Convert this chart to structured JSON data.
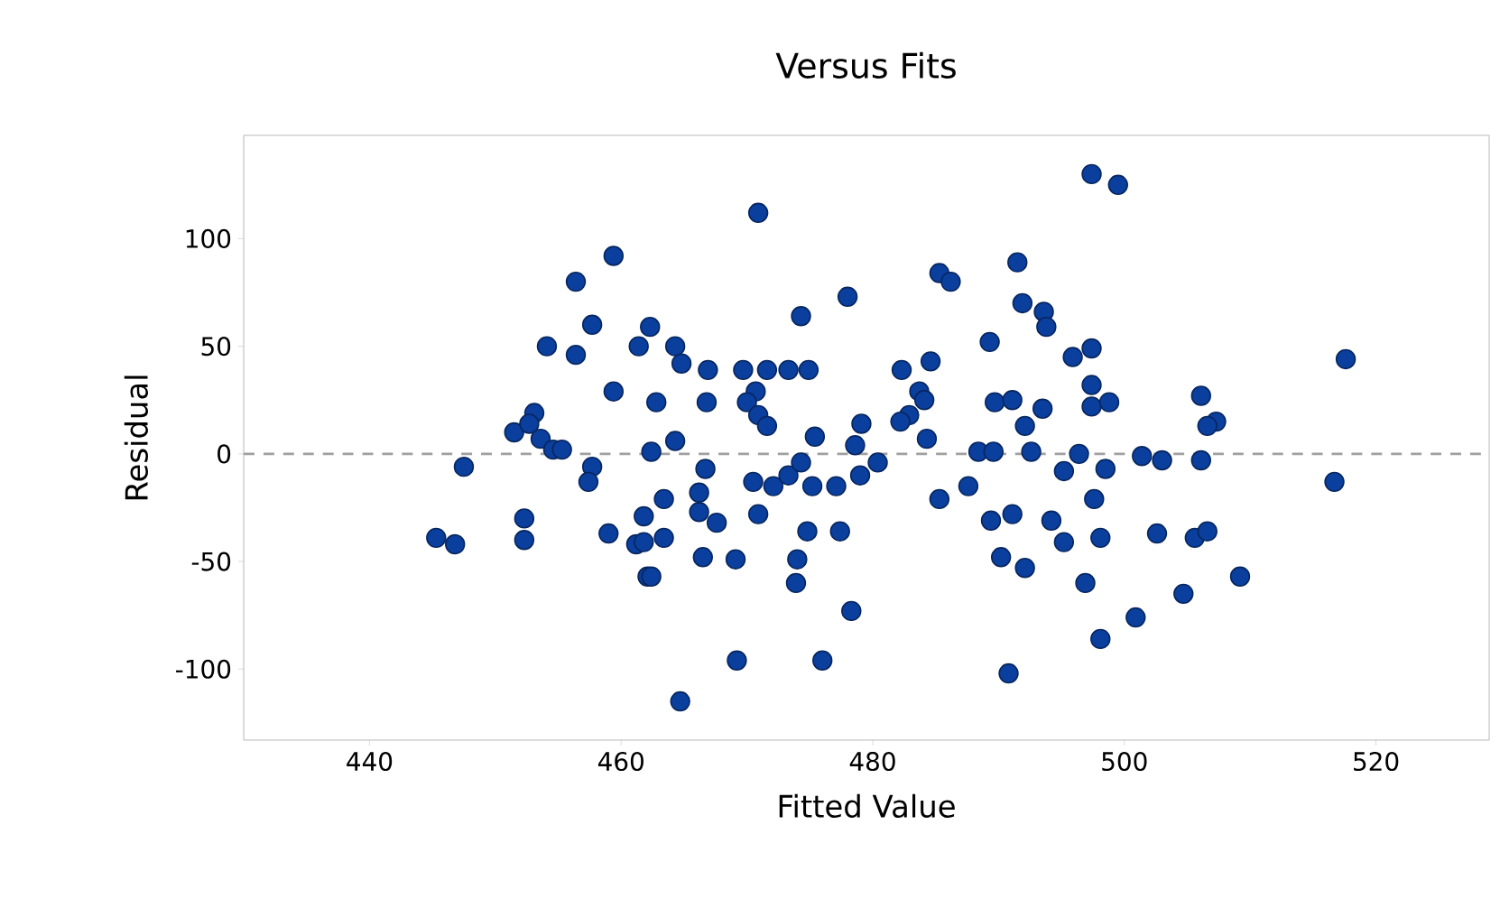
{
  "chart_data": {
    "type": "scatter",
    "title": "Versus Fits",
    "xlabel": "Fitted Value",
    "ylabel": "Residual",
    "xlim": [
      430,
      529
    ],
    "ylim": [
      -133,
      148
    ],
    "xticks": [
      440,
      460,
      480,
      500,
      520
    ],
    "yticks": [
      -100,
      -50,
      0,
      50,
      100
    ],
    "marker": "circle",
    "grid": false,
    "ref_lines": [
      {
        "axis": "y",
        "value": 0,
        "color": "#a0a0a0",
        "line_style": "dashed"
      }
    ],
    "series": [
      {
        "color": "#0b3f9e",
        "x": [
          459.4,
          456.4,
          457.7,
          454.1,
          456.4,
          459.4,
          453.1,
          451.5,
          452.7,
          453.6,
          454.6,
          455.3,
          447.5,
          457.7,
          457.4,
          459,
          461.2,
          462.1,
          452.3,
          452.3,
          445.3,
          446.8,
          470.9,
          485.3,
          486.2,
          491.5,
          478,
          474.3,
          491.9,
          493.6,
          493.8,
          462.3,
          461.4,
          464.3,
          489.3,
          495.9,
          464.8,
          466.9,
          469.7,
          471.6,
          473.3,
          474.9,
          482.3,
          484.6,
          483.7,
          470.7,
          462.8,
          466.8,
          470,
          470.9,
          471.6,
          484.1,
          482.9,
          482.2,
          489.7,
          491.1,
          493.5,
          492.1,
          492.6,
          484.3,
          479.1,
          478.6,
          475.4,
          462.4,
          464.3,
          488.4,
          489.6,
          466.7,
          470.5,
          472.1,
          473.3,
          474.3,
          475.2,
          477.1,
          479,
          480.4,
          466.2,
          466.2,
          463.4,
          485.3,
          487.6,
          461.8,
          461.8,
          463.4,
          467.6,
          470.9,
          474.8,
          477.4,
          489.4,
          491.1,
          494.2,
          495.2,
          466.5,
          469.1,
          474,
          490.2,
          492.1,
          462.4,
          473.9,
          478.3,
          469.2,
          476,
          490.8,
          464.7,
          497.4,
          499.5,
          497.4,
          497.4,
          497.4,
          498.8,
          506.1,
          507.3,
          506.6,
          496.4,
          495.2,
          498.5,
          501.4,
          503,
          506.1,
          516.7,
          497.6,
          498.1,
          502.6,
          505.6,
          506.6,
          509.2,
          496.9,
          504.7,
          500.9,
          498.1,
          517.6
        ],
        "values": [
          92,
          80,
          60,
          50,
          46,
          29,
          19,
          10,
          14,
          7,
          2,
          2,
          -6,
          -6,
          -13,
          -37,
          -42,
          -57,
          -30,
          -40,
          -39,
          -42,
          112,
          84,
          80,
          89,
          73,
          64,
          70,
          66,
          59,
          59,
          50,
          50,
          52,
          45,
          42,
          39,
          39,
          39,
          39,
          39,
          39,
          43,
          29,
          29,
          24,
          24,
          24,
          18,
          13,
          25,
          18,
          15,
          24,
          25,
          21,
          13,
          1,
          7,
          14,
          4,
          8,
          1,
          6,
          1,
          1,
          -7,
          -13,
          -15,
          -10,
          -4,
          -15,
          -15,
          -10,
          -4,
          -18,
          -27,
          -21,
          -21,
          -15,
          -29,
          -41,
          -39,
          -32,
          -28,
          -36,
          -36,
          -31,
          -28,
          -31,
          -41,
          -48,
          -49,
          -49,
          -48,
          -53,
          -57,
          -60,
          -73,
          -96,
          -96,
          -102,
          -115,
          130,
          125,
          49,
          32,
          22,
          24,
          27,
          15,
          13,
          0,
          -8,
          -7,
          -1,
          -3,
          -3,
          -13,
          -21,
          -39,
          -37,
          -39,
          -36,
          -57,
          -60,
          -65,
          -76,
          -86,
          44
        ]
      }
    ]
  }
}
